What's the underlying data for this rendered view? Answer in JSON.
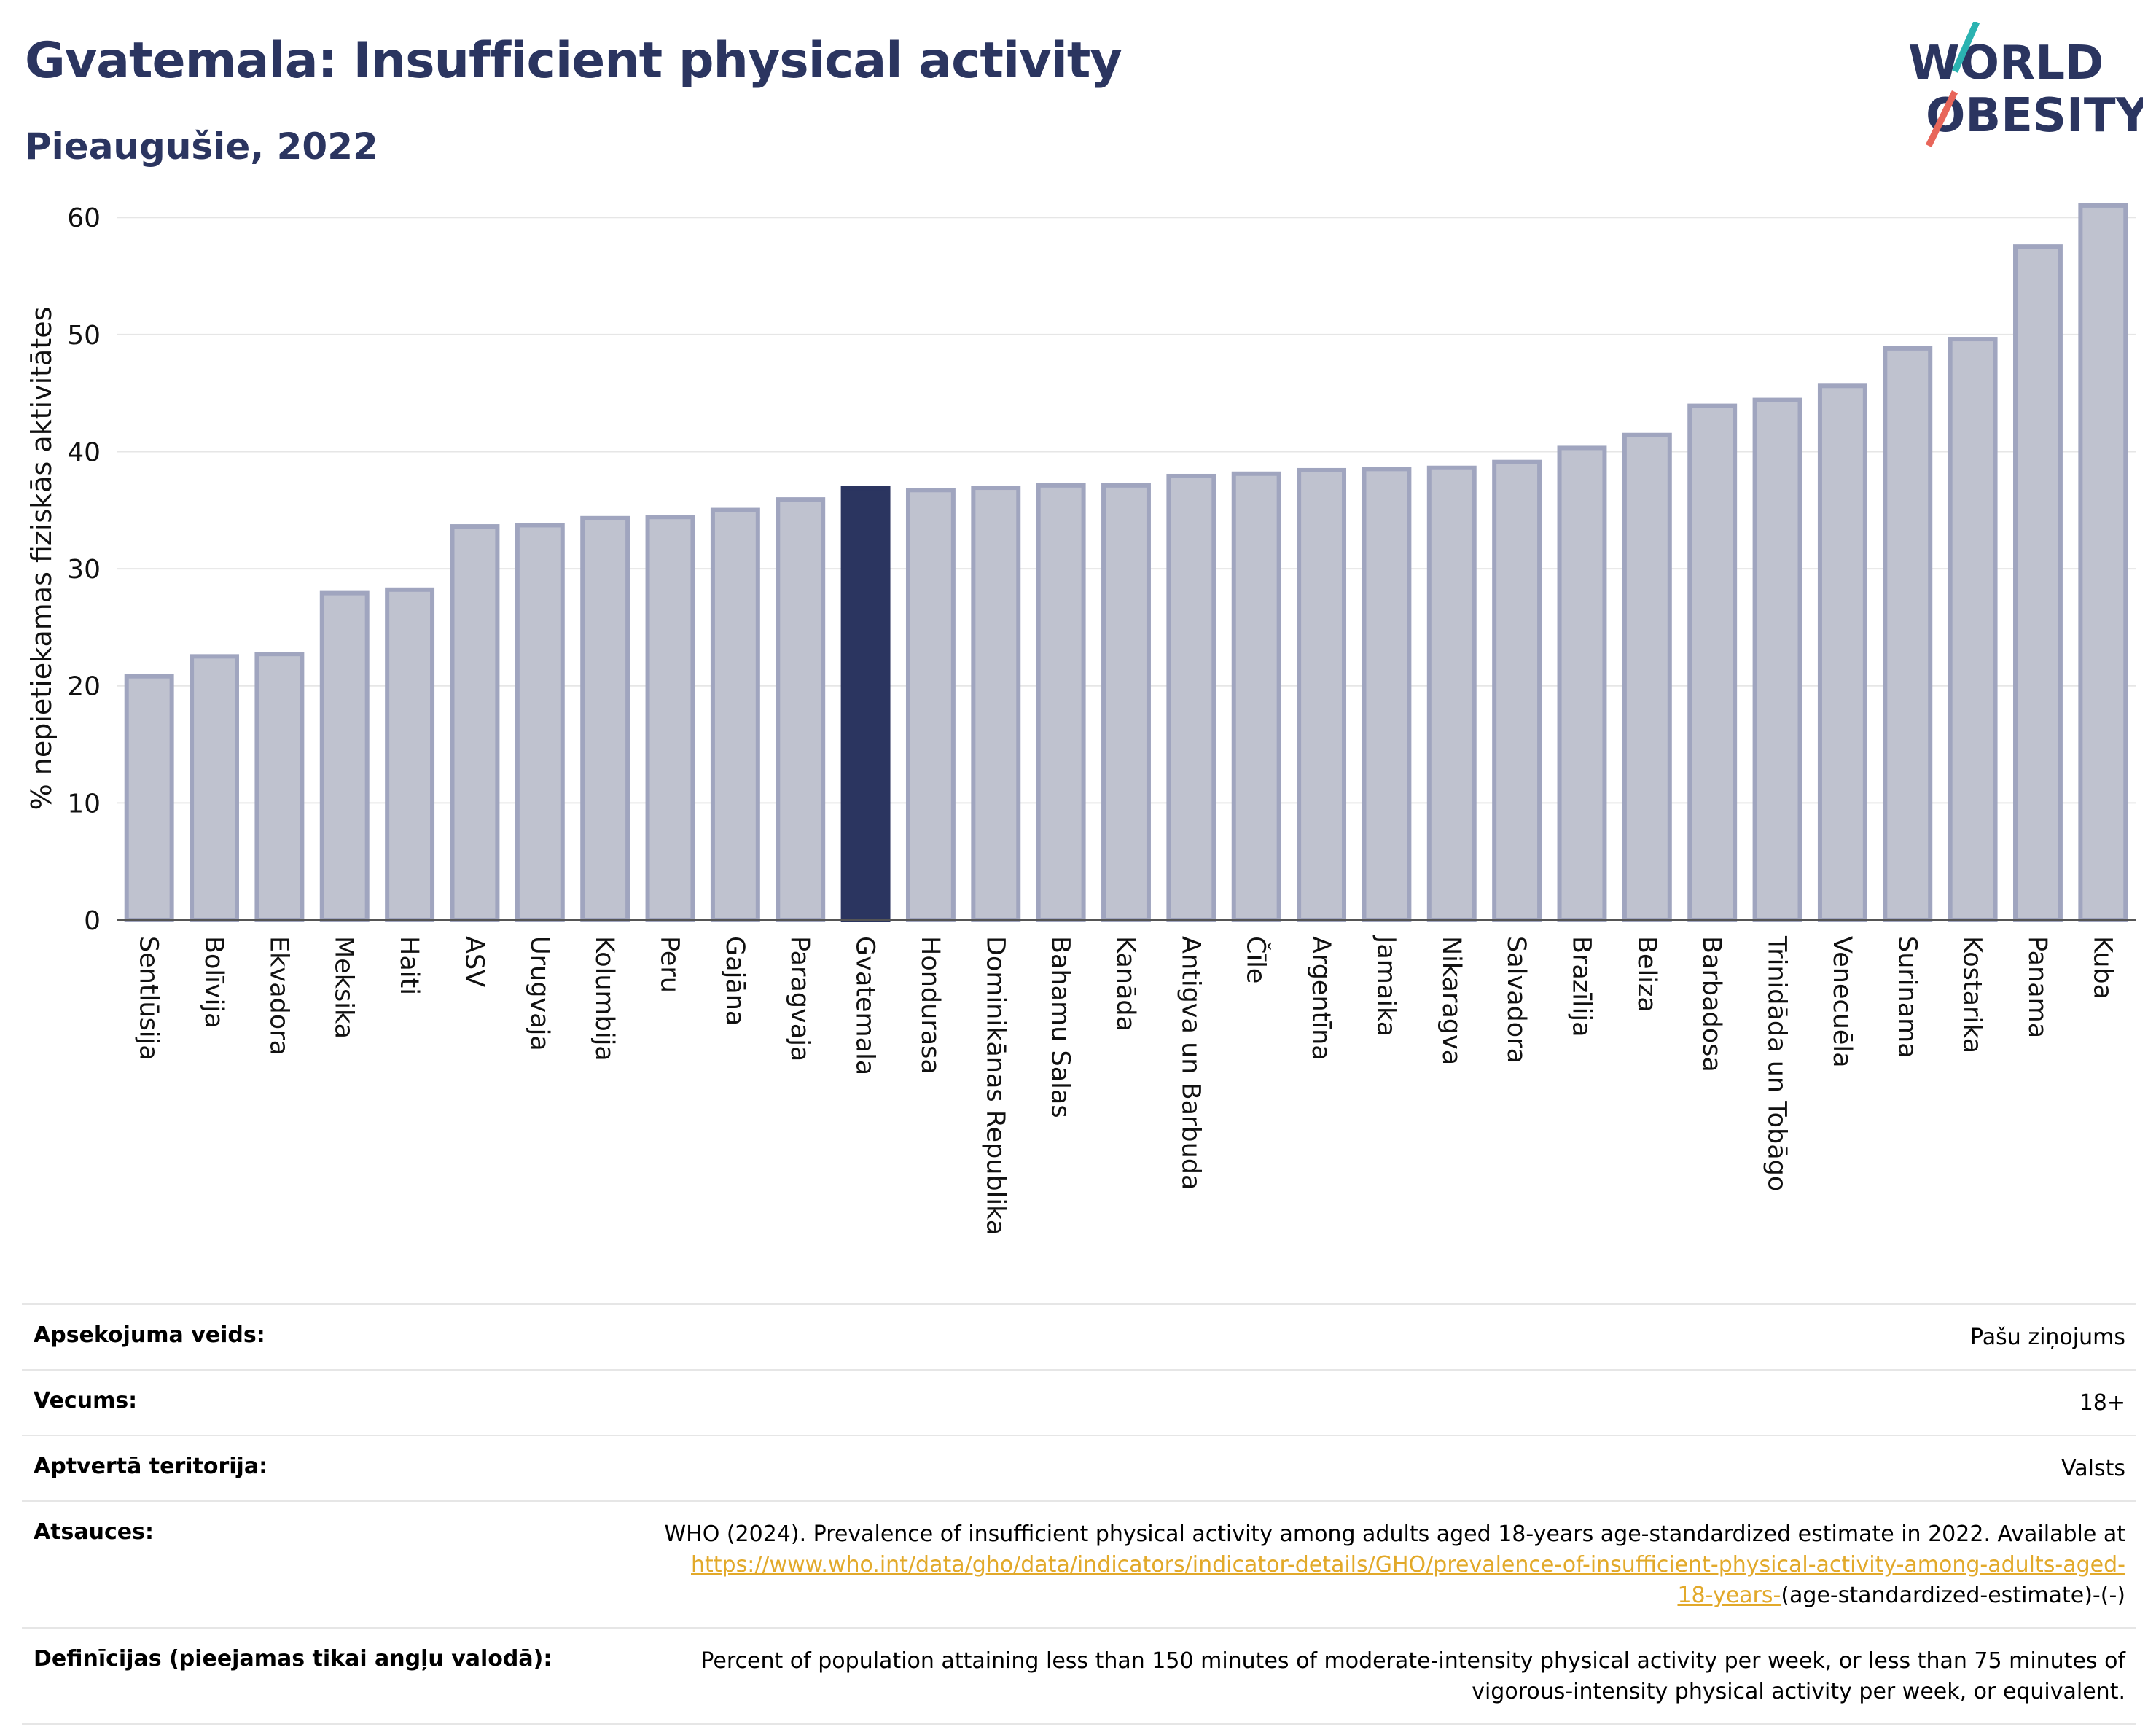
{
  "header": {
    "title": "Gvatemala: Insufficient physical activity",
    "subtitle": "Pieaugušie, 2022"
  },
  "logo": {
    "line1": "WORLD",
    "line2": "OBESITY",
    "slash_colors": [
      "#2bb3b1",
      "#e8665a"
    ]
  },
  "chart_data": {
    "type": "bar",
    "categories": [
      "Sentlūsija",
      "Bolīvija",
      "Ekvadora",
      "Meksika",
      "Haiti",
      "ASV",
      "Urugvaja",
      "Kolumbija",
      "Peru",
      "Gajāna",
      "Paragvaja",
      "Gvatemala",
      "Hondurasa",
      "Dominikānas Republika",
      "Bahamu Salas",
      "Kanāda",
      "Antigva un Barbuda",
      "Čīle",
      "Argentīna",
      "Jamaika",
      "Nikaragva",
      "Salvadora",
      "Brazīlija",
      "Beliza",
      "Barbadosa",
      "Trinidāda un Tobāgo",
      "Venecuēla",
      "Surinama",
      "Kostarika",
      "Panama",
      "Kuba"
    ],
    "values": [
      21.0,
      22.7,
      22.9,
      28.1,
      28.4,
      33.8,
      33.9,
      34.5,
      34.6,
      35.2,
      36.1,
      37.1,
      36.9,
      37.1,
      37.3,
      37.3,
      38.1,
      38.3,
      38.6,
      38.7,
      38.8,
      39.3,
      40.5,
      41.6,
      44.1,
      44.6,
      45.8,
      49.0,
      49.8,
      57.7,
      61.2
    ],
    "highlight": "Gvatemala",
    "ylabel": "% nepietiekamas fiziskās aktivitātes",
    "ylim": [
      0,
      63
    ],
    "yticks": [
      "0",
      "10",
      "20",
      "30",
      "40",
      "50",
      "60"
    ],
    "grid": true,
    "colors": {
      "bar": "#bfc2cf",
      "bar_edge": "#a0a5bf",
      "highlight": "#2b3560",
      "grid": "#e6e6e6",
      "axis": "#555555"
    }
  },
  "info": {
    "survey_label": "Apsekojuma veids:",
    "survey_value": "Pašu ziņojums",
    "age_label": "Vecums:",
    "age_value": "18+",
    "coverage_label": "Aptvertā teritorija:",
    "coverage_value": "Valsts",
    "refs_label": "Atsauces:",
    "refs_text": "WHO (2024). Prevalence of insufficient physical activity among adults aged 18-years age-standardized estimate in 2022. Available at",
    "refs_link_1": "https://www.who.int/data/gho/data/indicators/indicator-details/GHO/prevalence-of-insufficient-physical-activity-among-adults-aged-",
    "refs_link_2": "18-years-",
    "refs_tail": "(age-standardized-estimate)-(-)",
    "defs_label": "Definīcijas (pieejamas tikai angļu valodā):",
    "defs_line1": "Percent of population attaining less than 150 minutes of moderate-intensity physical activity per week, or less than 75 minutes of",
    "defs_line2": "vigorous-intensity physical activity per week, or equivalent."
  }
}
